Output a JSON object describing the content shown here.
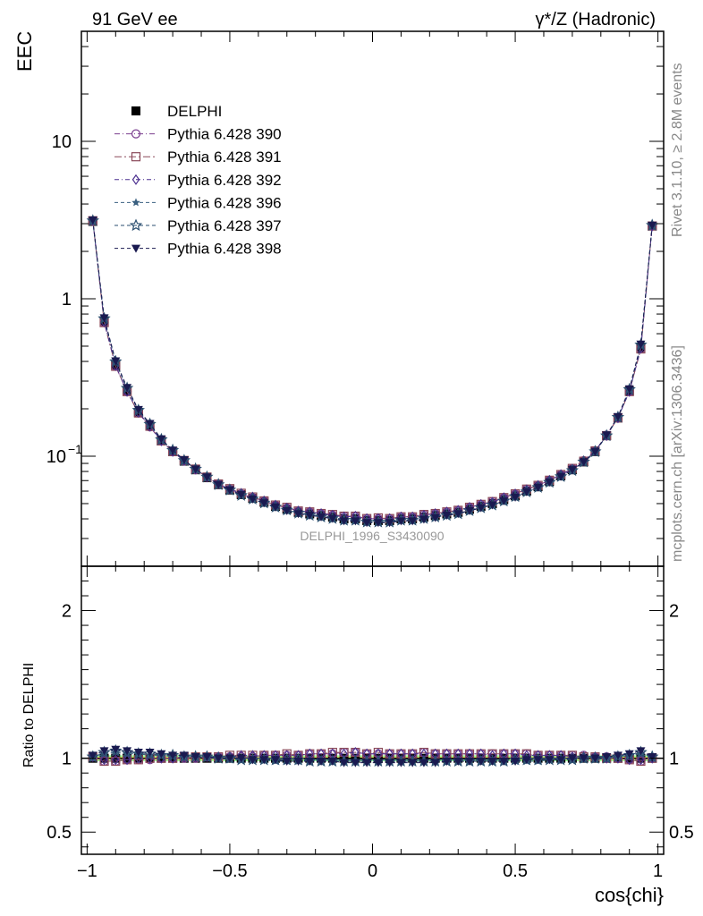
{
  "header": {
    "left": "91 GeV ee",
    "right": "γ*/Z (Hadronic)"
  },
  "side_text": {
    "rivet": "Rivet 3.1.10, ≥ 2.8M events",
    "mcplots": "mcplots.cern.ch [arXiv:1306.3436]"
  },
  "analysis_label": "DELPHI_1996_S3430090",
  "colors": {
    "data": "#000000",
    "p390": "#7b3f8f",
    "p391": "#8b4a5a",
    "p392": "#4b2f8f",
    "p396": "#3a6080",
    "p397": "#2b4f70",
    "p398": "#1a1a50",
    "band_inner": "#ffff66",
    "band_outer": "#99ff99"
  },
  "chart_data": [
    {
      "type": "line",
      "ylabel": "EEC",
      "yscale": "log",
      "ylim": [
        0.02,
        50
      ],
      "xlim": [
        -1.02,
        1.02
      ],
      "y_ticks": [
        {
          "label": "10",
          "value": 10
        },
        {
          "label": "1",
          "value": 1
        },
        {
          "label": "10^{-1}",
          "value": 0.1
        }
      ],
      "legend_placement": "upper-left",
      "x": [
        -0.98,
        -0.94,
        -0.9,
        -0.86,
        -0.82,
        -0.78,
        -0.74,
        -0.7,
        -0.66,
        -0.62,
        -0.58,
        -0.54,
        -0.5,
        -0.46,
        -0.42,
        -0.38,
        -0.34,
        -0.3,
        -0.26,
        -0.22,
        -0.18,
        -0.14,
        -0.1,
        -0.06,
        -0.02,
        0.02,
        0.06,
        0.1,
        0.14,
        0.18,
        0.22,
        0.26,
        0.3,
        0.34,
        0.38,
        0.42,
        0.46,
        0.5,
        0.54,
        0.58,
        0.62,
        0.66,
        0.7,
        0.74,
        0.78,
        0.82,
        0.86,
        0.9,
        0.94,
        0.98
      ],
      "series": [
        {
          "name": "DELPHI",
          "style": "data",
          "values": [
            3.1,
            0.72,
            0.38,
            0.26,
            0.19,
            0.155,
            0.125,
            0.107,
            0.093,
            0.082,
            0.073,
            0.066,
            0.061,
            0.057,
            0.054,
            0.051,
            0.048,
            0.046,
            0.044,
            0.043,
            0.042,
            0.041,
            0.04,
            0.04,
            0.039,
            0.039,
            0.039,
            0.04,
            0.04,
            0.041,
            0.042,
            0.043,
            0.044,
            0.046,
            0.048,
            0.05,
            0.053,
            0.056,
            0.06,
            0.064,
            0.069,
            0.075,
            0.082,
            0.092,
            0.107,
            0.135,
            0.175,
            0.26,
            0.49,
            2.9
          ]
        },
        {
          "name": "Pythia 6.428 390",
          "style": "circle",
          "color_key": "p390",
          "ratio": [
            1.01,
            0.98,
            0.98,
            0.99,
            0.99,
            0.99,
            1.0,
            1.0,
            1.0,
            1.0,
            1.01,
            1.01,
            1.01,
            1.01,
            1.01,
            1.02,
            1.02,
            1.02,
            1.02,
            1.03,
            1.03,
            1.03,
            1.04,
            1.04,
            1.03,
            1.03,
            1.03,
            1.03,
            1.03,
            1.04,
            1.03,
            1.03,
            1.03,
            1.03,
            1.03,
            1.03,
            1.03,
            1.03,
            1.03,
            1.02,
            1.02,
            1.02,
            1.02,
            1.02,
            1.01,
            1.01,
            1.0,
            0.99,
            0.98,
            1.0
          ]
        },
        {
          "name": "Pythia 6.428 391",
          "style": "square",
          "color_key": "p391",
          "ratio": [
            1.01,
            0.98,
            0.98,
            0.99,
            0.99,
            1.0,
            1.0,
            1.0,
            1.01,
            1.01,
            1.01,
            1.01,
            1.02,
            1.02,
            1.02,
            1.02,
            1.02,
            1.03,
            1.02,
            1.03,
            1.03,
            1.04,
            1.04,
            1.04,
            1.03,
            1.04,
            1.03,
            1.03,
            1.03,
            1.04,
            1.03,
            1.03,
            1.03,
            1.03,
            1.03,
            1.03,
            1.03,
            1.03,
            1.03,
            1.02,
            1.02,
            1.02,
            1.02,
            1.01,
            1.01,
            1.0,
            1.0,
            0.99,
            0.98,
            1.0
          ]
        },
        {
          "name": "Pythia 6.428 392",
          "style": "diamond",
          "color_key": "p392",
          "ratio": [
            1.01,
            0.99,
            0.99,
            0.99,
            1.0,
            1.0,
            1.0,
            1.0,
            1.01,
            1.01,
            1.01,
            1.01,
            1.01,
            1.02,
            1.02,
            1.02,
            1.02,
            1.02,
            1.02,
            1.03,
            1.03,
            1.03,
            1.03,
            1.04,
            1.03,
            1.03,
            1.03,
            1.03,
            1.03,
            1.03,
            1.03,
            1.03,
            1.03,
            1.03,
            1.03,
            1.02,
            1.03,
            1.03,
            1.02,
            1.02,
            1.02,
            1.02,
            1.01,
            1.01,
            1.01,
            1.0,
            1.0,
            0.99,
            0.99,
            1.0
          ]
        },
        {
          "name": "Pythia 6.428 396",
          "style": "star",
          "color_key": "p396",
          "ratio": [
            1.0,
            1.03,
            1.04,
            1.03,
            1.03,
            1.02,
            1.02,
            1.01,
            1.01,
            1.01,
            1.0,
            1.0,
            0.99,
            0.99,
            0.99,
            0.99,
            0.98,
            0.98,
            0.98,
            0.98,
            0.98,
            0.98,
            0.98,
            0.98,
            0.98,
            0.98,
            0.98,
            0.98,
            0.98,
            0.98,
            0.98,
            0.98,
            0.98,
            0.98,
            0.98,
            0.98,
            0.98,
            0.98,
            0.98,
            0.98,
            0.99,
            0.99,
            0.99,
            0.99,
            0.99,
            1.0,
            1.01,
            1.02,
            1.03,
            1.0
          ]
        },
        {
          "name": "Pythia 6.428 397",
          "style": "star-open",
          "color_key": "p397",
          "ratio": [
            1.01,
            1.04,
            1.05,
            1.04,
            1.03,
            1.03,
            1.02,
            1.02,
            1.01,
            1.01,
            1.01,
            1.0,
            1.0,
            0.99,
            0.99,
            0.99,
            0.99,
            0.99,
            0.99,
            0.98,
            0.98,
            0.98,
            0.98,
            0.98,
            0.98,
            0.98,
            0.98,
            0.98,
            0.98,
            0.98,
            0.98,
            0.98,
            0.98,
            0.98,
            0.98,
            0.98,
            0.98,
            0.99,
            0.99,
            0.99,
            0.99,
            0.99,
            0.99,
            1.0,
            1.0,
            1.0,
            1.01,
            1.02,
            1.04,
            1.01
          ]
        },
        {
          "name": "Pythia 6.428 398",
          "style": "tri-down",
          "color_key": "p398",
          "ratio": [
            1.02,
            1.05,
            1.06,
            1.05,
            1.04,
            1.04,
            1.03,
            1.02,
            1.02,
            1.01,
            1.01,
            1.0,
            1.0,
            1.0,
            0.99,
            0.99,
            0.99,
            0.98,
            0.98,
            0.98,
            0.98,
            0.98,
            0.97,
            0.97,
            0.97,
            0.97,
            0.97,
            0.97,
            0.97,
            0.97,
            0.97,
            0.98,
            0.98,
            0.98,
            0.98,
            0.98,
            0.98,
            0.98,
            0.99,
            0.99,
            0.99,
            0.99,
            1.0,
            1.0,
            1.0,
            1.01,
            1.02,
            1.03,
            1.05,
            1.01
          ]
        }
      ]
    },
    {
      "type": "line",
      "ylabel": "Ratio to DELPHI",
      "xlabel": "cos{chi}",
      "ylim": [
        0.35,
        2.3
      ],
      "xlim": [
        -1.02,
        1.02
      ],
      "y_ticks": [
        {
          "label": "2",
          "value": 2
        },
        {
          "label": "1",
          "value": 1
        },
        {
          "label": "0.5",
          "value": 0.5
        }
      ],
      "x_ticks": [
        {
          "label": "−1",
          "value": -1
        },
        {
          "label": "−0.5",
          "value": -0.5
        },
        {
          "label": "0",
          "value": 0
        },
        {
          "label": "0.5",
          "value": 0.5
        },
        {
          "label": "1",
          "value": 1
        }
      ],
      "band": {
        "inner_halfwidth": 0.01,
        "outer_halfwidth": 0.02
      }
    }
  ]
}
